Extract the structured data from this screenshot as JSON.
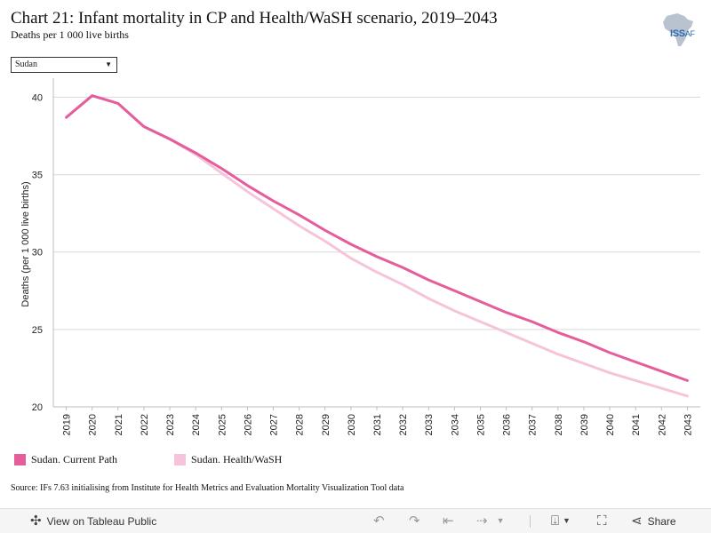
{
  "header": {
    "title": "Chart 21: Infant mortality in CP and Health/WaSH scenario, 2019–2043",
    "subtitle": "Deaths per 1 000 live births",
    "logo_text": "ISS",
    "logo_text_suffix": "AF"
  },
  "filter": {
    "selected": "Sudan"
  },
  "chart_data": {
    "type": "line",
    "title": "Chart 21: Infant mortality in CP and Health/WaSH scenario, 2019–2043",
    "subtitle": "Deaths per 1 000 live births",
    "ylabel": "Deaths (per 1 000 live births)",
    "xlabel": "",
    "ylim": [
      20,
      41
    ],
    "yticks": [
      20,
      25,
      30,
      35,
      40
    ],
    "grid": "horizontal",
    "legend_position": "bottom-left",
    "x": [
      "2019",
      "2020",
      "2021",
      "2022",
      "2023",
      "2024",
      "2025",
      "2026",
      "2027",
      "2028",
      "2029",
      "2030",
      "2031",
      "2032",
      "2033",
      "2034",
      "2035",
      "2036",
      "2037",
      "2038",
      "2039",
      "2040",
      "2041",
      "2042",
      "2043"
    ],
    "series": [
      {
        "name": "Sudan. Current Path",
        "color": "#e55d9b",
        "values": [
          38.7,
          40.1,
          39.6,
          38.1,
          37.3,
          36.4,
          35.4,
          34.3,
          33.3,
          32.4,
          31.4,
          30.5,
          29.7,
          29.0,
          28.2,
          27.5,
          26.8,
          26.1,
          25.5,
          24.8,
          24.2,
          23.5,
          22.9,
          22.3,
          21.7
        ]
      },
      {
        "name": "Sudan. Health/WaSH",
        "color": "#f6c4da",
        "values": [
          38.7,
          40.1,
          39.6,
          38.1,
          37.3,
          36.3,
          35.1,
          33.9,
          32.8,
          31.7,
          30.7,
          29.6,
          28.7,
          27.9,
          27.0,
          26.2,
          25.5,
          24.8,
          24.1,
          23.4,
          22.8,
          22.2,
          21.7,
          21.2,
          20.7
        ]
      }
    ]
  },
  "source": "Source: IFs 7.63 initialising from Institute for Health Metrics and Evaluation Mortality Visualization Tool data",
  "toolbar": {
    "view_label": "View on Tableau Public",
    "share_label": "Share",
    "icons": [
      "tableau-icon",
      "undo-icon",
      "redo-icon",
      "revert-icon",
      "refresh-icon",
      "download-icon",
      "fullscreen-icon",
      "share-icon"
    ]
  }
}
